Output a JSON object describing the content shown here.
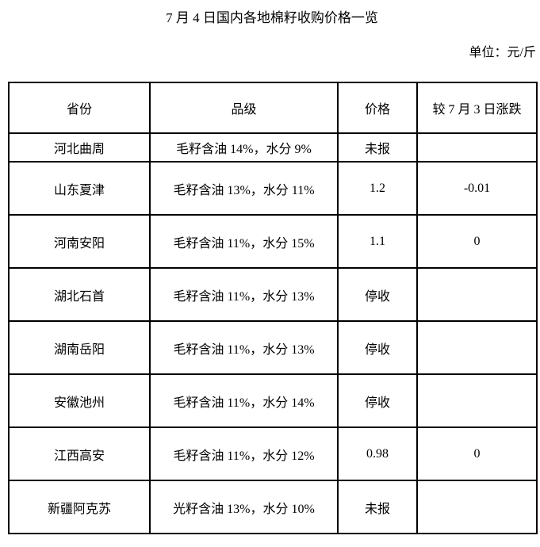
{
  "title": "7 月 4 日国内各地棉籽收购价格一览",
  "unit_label": "单位：元/斤",
  "table": {
    "headers": {
      "province": "省份",
      "grade": "品级",
      "price": "价格",
      "change": "较 7 月 3 日涨跌"
    },
    "rows": [
      {
        "province": "河北曲周",
        "grade": "毛籽含油 14%，水分 9%",
        "price": "未报",
        "change": ""
      },
      {
        "province": "山东夏津",
        "grade": "毛籽含油 13%，水分 11%",
        "price": "1.2",
        "change": "-0.01"
      },
      {
        "province": "河南安阳",
        "grade": "毛籽含油 11%，水分 15%",
        "price": "1.1",
        "change": "0"
      },
      {
        "province": "湖北石首",
        "grade": "毛籽含油 11%，水分 13%",
        "price": "停收",
        "change": ""
      },
      {
        "province": "湖南岳阳",
        "grade": "毛籽含油 11%，水分 13%",
        "price": "停收",
        "change": ""
      },
      {
        "province": "安徽池州",
        "grade": "毛籽含油 11%，水分 14%",
        "price": "停收",
        "change": ""
      },
      {
        "province": "江西高安",
        "grade": "毛籽含油 11%，水分 12%",
        "price": "0.98",
        "change": "0"
      },
      {
        "province": "新疆阿克苏",
        "grade": "光籽含油 13%，水分 10%",
        "price": "未报",
        "change": ""
      }
    ]
  },
  "colors": {
    "background": "#ffffff",
    "text": "#000000",
    "border": "#000000"
  }
}
